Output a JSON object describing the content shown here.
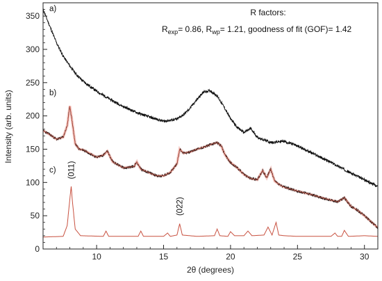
{
  "chart_data": {
    "type": "line",
    "title": "",
    "xlabel": "2θ (degrees)",
    "ylabel": "Intensity (arb. units)",
    "xlim": [
      6,
      31
    ],
    "ylim": [
      0,
      370
    ],
    "x_ticks": [
      10,
      15,
      20,
      25,
      30
    ],
    "y_ticks": [
      0,
      50,
      100,
      150,
      200,
      250,
      300,
      350
    ],
    "grid": false,
    "legend": "none",
    "colors": {
      "observed": "#111111",
      "fit": "#c8503f",
      "fit_band": "#f2b8b0"
    },
    "panel_labels": [
      "a)",
      "b)",
      "c)"
    ],
    "r_factors": {
      "heading": "R factors:",
      "r_exp": "0.86",
      "r_wp": "1.21",
      "gof_label": "goodness of fit (GOF)",
      "gof": "1.42"
    },
    "peak_labels": [
      {
        "text": "(011)",
        "x": 8.1
      },
      {
        "text": "(022)",
        "x": 16.2
      }
    ],
    "series": [
      {
        "label": "a)",
        "x": [
          6.0,
          6.5,
          7.0,
          7.5,
          8.0,
          8.5,
          9.0,
          10.0,
          11.0,
          12.0,
          13.0,
          14.0,
          15.0,
          16.0,
          16.5,
          17.0,
          17.5,
          18.0,
          18.5,
          19.0,
          19.5,
          20.0,
          20.5,
          21.0,
          21.5,
          22.0,
          23.0,
          24.0,
          25.0,
          26.0,
          27.0,
          28.0,
          29.0,
          30.0,
          31.0
        ],
        "values": [
          360,
          335,
          310,
          290,
          275,
          262,
          252,
          237,
          225,
          214,
          205,
          198,
          192,
          195,
          202,
          212,
          225,
          236,
          238,
          230,
          214,
          196,
          183,
          175,
          181,
          168,
          160,
          162,
          155,
          145,
          135,
          125,
          114,
          104,
          94
        ]
      },
      {
        "label": "b)",
        "x": [
          6.0,
          6.5,
          7.0,
          7.5,
          7.8,
          8.0,
          8.2,
          8.4,
          8.7,
          9.0,
          10.0,
          10.5,
          10.8,
          11.2,
          12.0,
          12.8,
          13.0,
          13.3,
          14.0,
          14.5,
          15.0,
          15.5,
          16.0,
          16.2,
          16.5,
          17.0,
          17.5,
          18.0,
          18.5,
          19.0,
          19.3,
          19.6,
          20.0,
          20.5,
          21.0,
          21.5,
          22.0,
          22.4,
          22.7,
          23.0,
          23.3,
          23.7,
          24.0,
          25.0,
          26.0,
          27.0,
          28.0,
          28.5,
          29.0,
          29.5,
          30.0,
          31.0
        ],
        "values": [
          178,
          172,
          165,
          168,
          185,
          215,
          188,
          158,
          150,
          149,
          138,
          141,
          147,
          131,
          122,
          124,
          131,
          120,
          114,
          110,
          110,
          115,
          128,
          150,
          144,
          146,
          150,
          153,
          157,
          160,
          155,
          141,
          130,
          122,
          112,
          106,
          104,
          118,
          107,
          120,
          102,
          96,
          93,
          87,
          82,
          76,
          71,
          77,
          64,
          58,
          50,
          32
        ]
      },
      {
        "label": "c)",
        "x": [
          6.0,
          7.5,
          7.8,
          8.0,
          8.1,
          8.2,
          8.4,
          8.8,
          10.5,
          10.7,
          10.9,
          12.0,
          13.1,
          13.3,
          13.5,
          15.0,
          15.3,
          15.5,
          16.0,
          16.2,
          16.4,
          17.5,
          18.8,
          19.0,
          19.2,
          19.8,
          20.0,
          20.3,
          21.0,
          21.3,
          21.6,
          22.5,
          22.8,
          23.1,
          23.4,
          23.6,
          24.0,
          25.0,
          27.5,
          27.8,
          28.0,
          28.3,
          28.5,
          28.8,
          30.0,
          31.0
        ],
        "values": [
          18,
          19,
          35,
          75,
          94,
          70,
          30,
          20,
          19,
          27,
          19,
          19,
          19,
          27,
          19,
          19,
          24,
          19,
          21,
          38,
          21,
          19,
          20,
          30,
          20,
          19,
          26,
          20,
          20,
          27,
          20,
          21,
          33,
          21,
          40,
          21,
          20,
          19,
          19,
          24,
          19,
          19,
          28,
          19,
          20,
          19
        ]
      }
    ]
  }
}
